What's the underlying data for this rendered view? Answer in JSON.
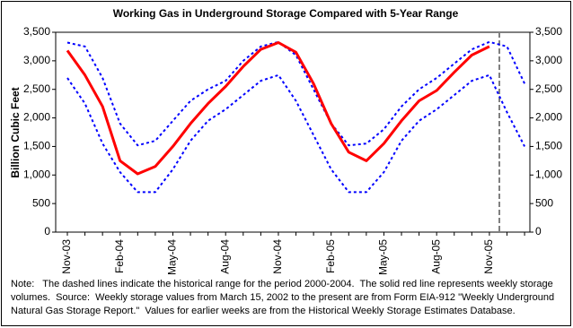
{
  "chart_data": {
    "type": "line",
    "title": "Working Gas in Underground Storage Compared with 5-Year Range",
    "y_label": "Billion Cubic Feet",
    "categories": [
      "Nov-03",
      null,
      null,
      "Feb-04",
      null,
      null,
      "May-04",
      null,
      null,
      "Aug-04",
      null,
      null,
      "Nov-04",
      null,
      null,
      "Feb-05",
      null,
      null,
      "May-05",
      null,
      null,
      "Aug-05",
      null,
      null,
      "Nov-05",
      null,
      null
    ],
    "series": [
      {
        "color": "#0000ff",
        "dashed": true,
        "values": [
          3320,
          3250,
          2700,
          1900,
          1520,
          1600,
          1950,
          2300,
          2500,
          2650,
          3000,
          3250,
          3330,
          3100,
          2500,
          1900,
          1520,
          1550,
          1800,
          2200,
          2500,
          2700,
          2950,
          3200,
          3330,
          3250,
          2600
        ]
      },
      {
        "color": "#0000ff",
        "dashed": true,
        "values": [
          2700,
          2250,
          1550,
          1050,
          700,
          700,
          1100,
          1600,
          1950,
          2150,
          2400,
          2650,
          2750,
          2300,
          1700,
          1100,
          700,
          700,
          1050,
          1600,
          1950,
          2150,
          2400,
          2650,
          2750,
          2100,
          1500
        ]
      },
      {
        "color": "#ff0000",
        "dashed": false,
        "values": [
          3180,
          2750,
          2200,
          1250,
          1020,
          1150,
          1500,
          1900,
          2250,
          2550,
          2900,
          3200,
          3320,
          3150,
          2600,
          1900,
          1400,
          1250,
          1550,
          1950,
          2300,
          2480,
          2800,
          3100,
          3250,
          null,
          null
        ]
      }
    ],
    "ylim": [
      0,
      3500
    ],
    "yticks": [
      0,
      500,
      {
        "value": 1000,
        "label": "1,000"
      },
      {
        "value": 1500,
        "label": "1,500"
      },
      {
        "value": 2000,
        "label": "2,000"
      },
      {
        "value": 2500,
        "label": "2,500"
      },
      {
        "value": 3000,
        "label": "3,000"
      },
      {
        "value": 3500,
        "label": "3,500"
      }
    ],
    "y2lim": [
      0,
      3500
    ],
    "y2ticks": [
      0,
      500,
      {
        "value": 1000,
        "label": "1,000"
      },
      {
        "value": 1500,
        "label": "1,500"
      },
      {
        "value": 2000,
        "label": "2,000"
      },
      {
        "value": 2500,
        "label": "2,500"
      },
      {
        "value": 3000,
        "label": "3,000"
      },
      {
        "value": 3500,
        "label": "3,500"
      }
    ],
    "note": "Note:   The dashed lines indicate the historical range for the period 2000-2004.  The solid red line represents weekly storage volumes.  Source:  Weekly storage values from March 15, 2002 to the present are from Form EIA-912 \"Weekly Underground Natural Gas Storage Report.\"  Values for earlier weeks are from the Historical Weekly Storage Estimates Database."
  }
}
